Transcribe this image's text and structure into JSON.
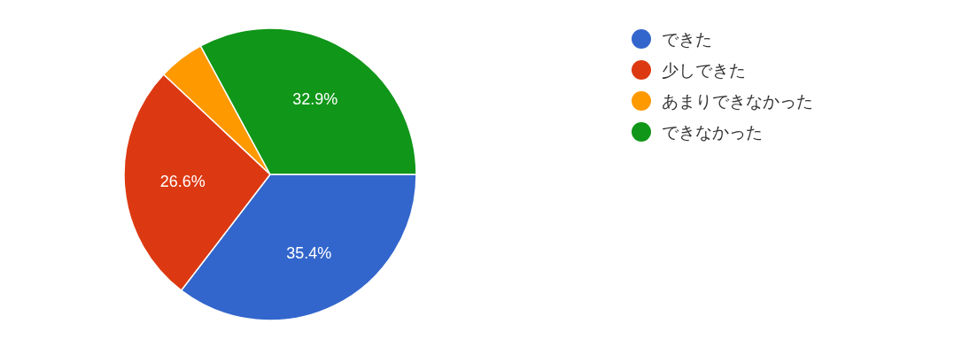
{
  "chart_data": {
    "type": "pie",
    "categories": [
      "できた",
      "少しできた",
      "あまりできなかった",
      "できなかった"
    ],
    "values": [
      35.4,
      26.6,
      5.1,
      32.9
    ],
    "colors": [
      "#3366cc",
      "#dc3912",
      "#ff9900",
      "#109618"
    ],
    "value_labels": [
      "35.4%",
      "26.6%",
      null,
      "32.9%"
    ],
    "legend": "right"
  }
}
